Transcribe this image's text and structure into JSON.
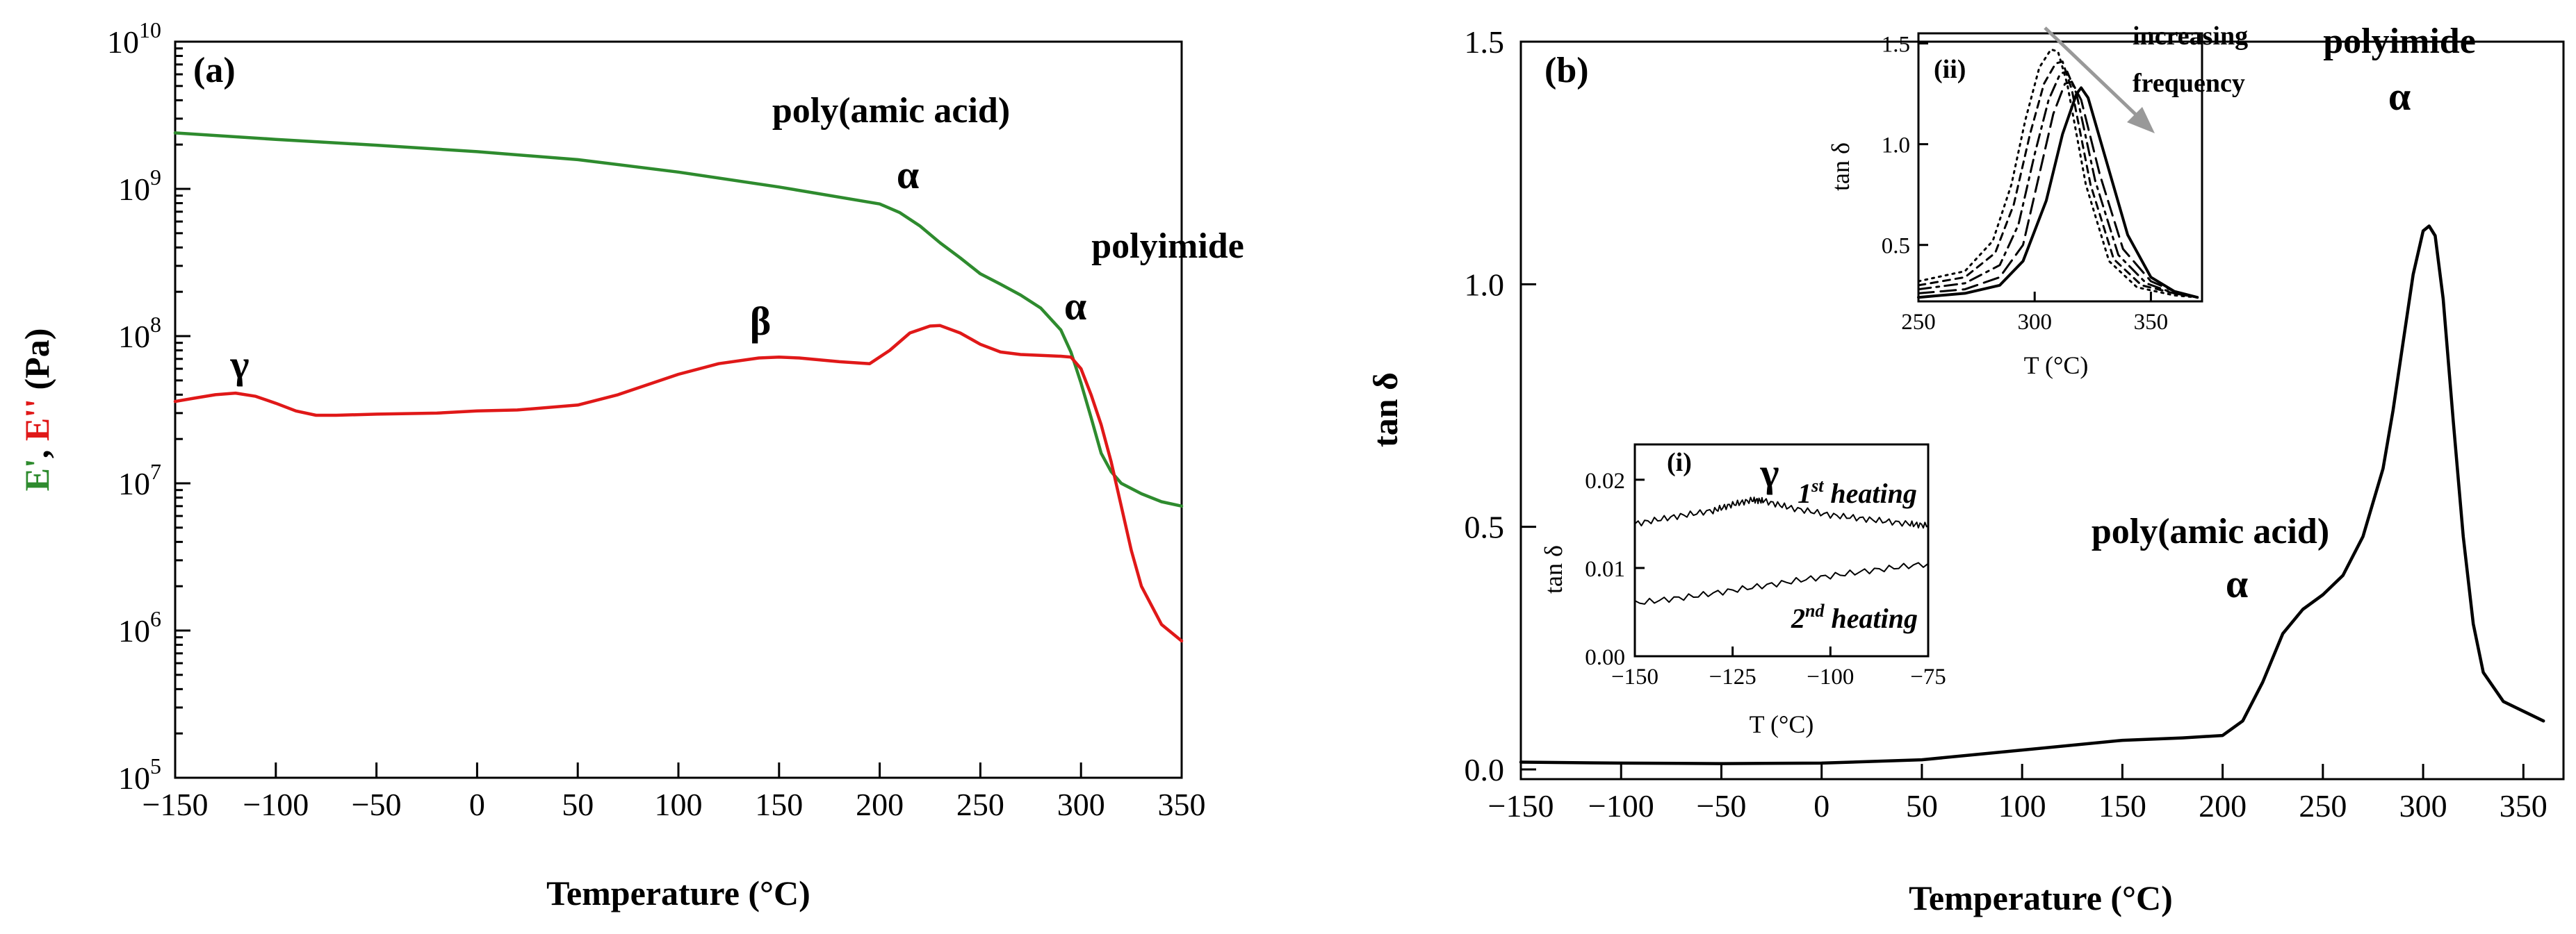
{
  "colors": {
    "storage_modulus": "#2e8b2e",
    "loss_modulus": "#e01818",
    "tan_delta": "#000000",
    "arrow": "#999999",
    "axis": "#000000"
  },
  "chart_data": [
    {
      "panel": "(a)",
      "type": "line",
      "xlabel": "Temperature (°C)",
      "ylabel_parts": [
        "E'",
        ", ",
        "E''",
        " (Pa)"
      ],
      "yscale": "log",
      "xlim": [
        -150,
        350
      ],
      "ylim": [
        100000,
        10000000000
      ],
      "xticks": [
        -150,
        -100,
        -50,
        0,
        50,
        100,
        150,
        200,
        250,
        300,
        350
      ],
      "yticks": [
        {
          "value": 100000,
          "base": "10",
          "exp": "5"
        },
        {
          "value": 1000000,
          "base": "10",
          "exp": "6"
        },
        {
          "value": 10000000,
          "base": "10",
          "exp": "7"
        },
        {
          "value": 100000000,
          "base": "10",
          "exp": "8"
        },
        {
          "value": 1000000000,
          "base": "10",
          "exp": "9"
        },
        {
          "value": 10000000000,
          "base": "10",
          "exp": "10"
        }
      ],
      "series": [
        {
          "name": "E'",
          "color": "#2e8b2e",
          "x": [
            -150,
            -100,
            -50,
            0,
            50,
            100,
            150,
            200,
            210,
            220,
            230,
            240,
            250,
            260,
            270,
            280,
            290,
            295,
            300,
            305,
            310,
            315,
            320,
            330,
            340,
            350
          ],
          "y": [
            2400000000,
            2170000000,
            1980000000,
            1790000000,
            1580000000,
            1300000000,
            1030000000,
            790000000,
            690000000,
            560000000,
            430000000,
            340000000,
            265000000,
            225000000,
            190000000,
            155000000,
            110000000,
            78000000,
            48000000,
            28000000,
            16000000,
            12000000,
            10000000,
            8500000,
            7500000,
            7000000
          ]
        },
        {
          "name": "E''",
          "color": "#e01818",
          "x": [
            -150,
            -140,
            -130,
            -120,
            -110,
            -100,
            -90,
            -80,
            -70,
            -50,
            -20,
            0,
            20,
            50,
            70,
            100,
            120,
            140,
            150,
            160,
            180,
            195,
            205,
            215,
            225,
            230,
            240,
            250,
            260,
            270,
            280,
            290,
            295,
            300,
            305,
            310,
            315,
            320,
            325,
            330,
            340,
            350
          ],
          "y": [
            36000000,
            38000000,
            40000000,
            41000000,
            39000000,
            35000000,
            31000000,
            29000000,
            29000000,
            29500000,
            30000000,
            31000000,
            31500000,
            34000000,
            40000000,
            55000000,
            65000000,
            71000000,
            72000000,
            71000000,
            67000000,
            65000000,
            80000000,
            105000000,
            117000000,
            118000000,
            105000000,
            88000000,
            78000000,
            75000000,
            74000000,
            73000000,
            72000000,
            60000000,
            40000000,
            25000000,
            14000000,
            7000000,
            3500000,
            2000000,
            1100000,
            850000
          ]
        }
      ],
      "annotations": {
        "gamma": "γ",
        "beta": "β",
        "paa_label": "poly(amic acid)",
        "paa_alpha": "α",
        "pi_label": "polyimide",
        "pi_alpha": "α"
      }
    },
    {
      "panel": "(b)",
      "type": "line",
      "xlabel": "Temperature (°C)",
      "ylabel": "tan δ",
      "xlim": [
        -150,
        370
      ],
      "ylim": [
        -0.02,
        1.5
      ],
      "xticks": [
        -150,
        -100,
        -50,
        0,
        50,
        100,
        150,
        200,
        250,
        300,
        350
      ],
      "yticks": [
        "0.0",
        "0.5",
        "1.0",
        "1.5"
      ],
      "series": [
        {
          "name": "tan δ",
          "color": "#000000",
          "x": [
            -150,
            -100,
            -50,
            0,
            50,
            100,
            150,
            180,
            200,
            210,
            220,
            230,
            240,
            250,
            260,
            270,
            280,
            285,
            290,
            295,
            300,
            303,
            306,
            310,
            315,
            320,
            325,
            330,
            340,
            350,
            360
          ],
          "y": [
            0.015,
            0.013,
            0.012,
            0.013,
            0.02,
            0.04,
            0.06,
            0.065,
            0.07,
            0.1,
            0.18,
            0.28,
            0.33,
            0.36,
            0.4,
            0.48,
            0.62,
            0.74,
            0.88,
            1.02,
            1.11,
            1.12,
            1.1,
            0.97,
            0.72,
            0.48,
            0.3,
            0.2,
            0.14,
            0.12,
            0.1
          ]
        }
      ],
      "annotations": {
        "paa_label": "poly(amic acid)",
        "paa_alpha": "α",
        "pi_label": "polyimide",
        "pi_alpha": "α"
      },
      "insets": [
        {
          "label": "(i)",
          "xlabel": "T (°C)",
          "ylabel": "tan δ",
          "xlim": [
            -150,
            -75
          ],
          "ylim": [
            0,
            0.024
          ],
          "xticks": [
            "-150",
            "-125",
            "-100",
            "-75"
          ],
          "yticks": [
            "0.00",
            "0.01",
            "0.02"
          ],
          "annotation_gamma": "γ",
          "first_heating": {
            "num": "1",
            "sup": "st",
            "text": " heating"
          },
          "second_heating": {
            "num": "2",
            "sup": "nd",
            "text": " heating"
          },
          "series": [
            {
              "name": "1st heating",
              "x": [
                -150,
                -140,
                -130,
                -125,
                -120,
                -117,
                -110,
                -100,
                -90,
                -80,
                -75
              ],
              "y": [
                0.015,
                0.0158,
                0.0165,
                0.0172,
                0.0177,
                0.0176,
                0.0168,
                0.016,
                0.0155,
                0.015,
                0.0148
              ]
            },
            {
              "name": "2nd heating",
              "x": [
                -150,
                -135,
                -120,
                -105,
                -90,
                -75
              ],
              "y": [
                0.006,
                0.0068,
                0.0078,
                0.0088,
                0.0097,
                0.0105
              ]
            }
          ]
        },
        {
          "label": "(ii)",
          "xlabel": "T (°C)",
          "ylabel": "tan δ",
          "xlim": [
            250,
            372
          ],
          "ylim": [
            0.22,
            1.55
          ],
          "xticks": [
            "250",
            "300",
            "350"
          ],
          "yticks": [
            "0.5",
            "1.0",
            "1.5"
          ],
          "arrow_text": [
            "increasing",
            "frequency"
          ],
          "series": [
            {
              "name": "f1",
              "style": "solid",
              "x": [
                250,
                270,
                285,
                295,
                305,
                312,
                318,
                320,
                323,
                330,
                340,
                350,
                360,
                370
              ],
              "y": [
                0.24,
                0.26,
                0.3,
                0.42,
                0.72,
                1.05,
                1.25,
                1.28,
                1.23,
                0.95,
                0.55,
                0.34,
                0.27,
                0.24
              ]
            },
            {
              "name": "f2",
              "style": "longdash",
              "x": [
                250,
                270,
                285,
                295,
                302,
                308,
                313,
                316,
                320,
                328,
                338,
                350,
                360,
                370
              ],
              "y": [
                0.26,
                0.28,
                0.34,
                0.5,
                0.85,
                1.15,
                1.3,
                1.31,
                1.22,
                0.85,
                0.48,
                0.32,
                0.27,
                0.24
              ]
            },
            {
              "name": "f3",
              "style": "dashdot",
              "x": [
                250,
                270,
                285,
                293,
                300,
                306,
                311,
                314,
                318,
                326,
                336,
                348,
                360,
                370
              ],
              "y": [
                0.28,
                0.31,
                0.4,
                0.6,
                0.95,
                1.22,
                1.35,
                1.36,
                1.25,
                0.82,
                0.45,
                0.31,
                0.26,
                0.24
              ]
            },
            {
              "name": "f4",
              "style": "dashed",
              "x": [
                250,
                270,
                283,
                291,
                298,
                304,
                309,
                312,
                316,
                324,
                334,
                346,
                360,
                370
              ],
              "y": [
                0.3,
                0.34,
                0.46,
                0.7,
                1.05,
                1.3,
                1.4,
                1.41,
                1.27,
                0.8,
                0.43,
                0.3,
                0.26,
                0.24
              ]
            },
            {
              "name": "f5",
              "style": "dotted",
              "x": [
                250,
                270,
                282,
                290,
                296,
                302,
                307,
                310,
                314,
                322,
                332,
                344,
                360,
                370
              ],
              "y": [
                0.32,
                0.37,
                0.52,
                0.8,
                1.12,
                1.38,
                1.47,
                1.46,
                1.3,
                0.8,
                0.42,
                0.29,
                0.25,
                0.24
              ]
            }
          ]
        }
      ]
    }
  ]
}
